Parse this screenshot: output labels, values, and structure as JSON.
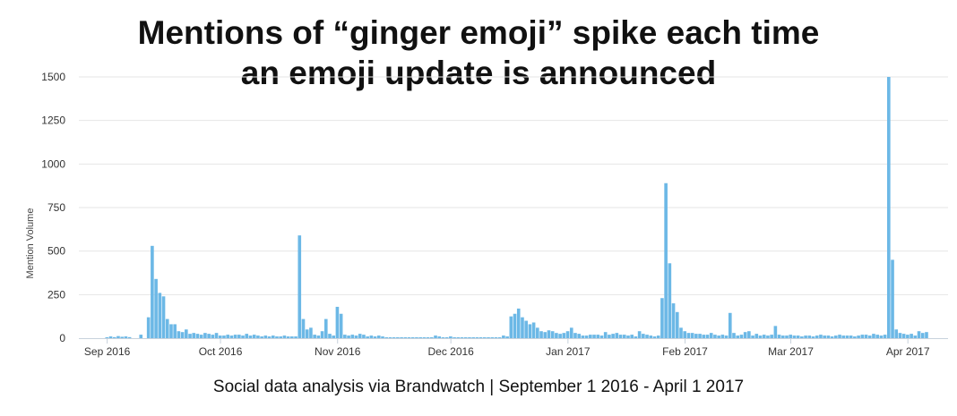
{
  "chart_data": {
    "type": "bar",
    "title_lines": [
      "Mentions of “ginger emoji” spike each time",
      "an emoji update is announced"
    ],
    "subtitle": "Social data analysis via Brandwatch | September 1 2016 - April 1 2017",
    "ylabel": "Mention Volume",
    "xlabel": "",
    "ylim": [
      0,
      1500
    ],
    "yticks": [
      "0",
      "250",
      "500",
      "750",
      "1000",
      "1250",
      "1500"
    ],
    "xticks": [
      {
        "label": "Sep 2016",
        "x": "2016-09-01"
      },
      {
        "label": "Oct 2016",
        "x": "2016-10-01"
      },
      {
        "label": "Nov 2016",
        "x": "2016-11-01"
      },
      {
        "label": "Dec 2016",
        "x": "2016-12-01"
      },
      {
        "label": "Jan 2017",
        "x": "2017-01-01"
      },
      {
        "label": "Feb 2017",
        "x": "2017-02-01"
      },
      {
        "label": "Mar 2017",
        "x": "2017-03-01"
      },
      {
        "label": "Apr 2017",
        "x": "2017-04-01"
      }
    ],
    "grid": true,
    "bar_color": "#6cb8e6",
    "x_start": "2016-08-25",
    "values": [
      0,
      0,
      0,
      0,
      0,
      0,
      0,
      5,
      10,
      6,
      12,
      8,
      10,
      6,
      0,
      0,
      20,
      0,
      120,
      530,
      340,
      260,
      240,
      110,
      80,
      80,
      40,
      35,
      50,
      25,
      30,
      25,
      20,
      30,
      25,
      20,
      30,
      15,
      15,
      20,
      15,
      20,
      20,
      15,
      25,
      15,
      20,
      15,
      10,
      15,
      10,
      15,
      10,
      10,
      15,
      10,
      10,
      10,
      590,
      110,
      50,
      60,
      20,
      15,
      40,
      110,
      25,
      15,
      180,
      140,
      20,
      15,
      20,
      15,
      25,
      20,
      10,
      15,
      10,
      15,
      10,
      5,
      5,
      5,
      5,
      5,
      5,
      5,
      5,
      5,
      5,
      5,
      5,
      5,
      15,
      10,
      5,
      5,
      10,
      5,
      5,
      5,
      5,
      5,
      5,
      5,
      5,
      5,
      5,
      5,
      5,
      5,
      15,
      10,
      125,
      140,
      170,
      120,
      100,
      80,
      90,
      60,
      40,
      35,
      45,
      40,
      30,
      25,
      30,
      40,
      60,
      30,
      25,
      15,
      15,
      20,
      20,
      20,
      15,
      35,
      20,
      25,
      30,
      20,
      20,
      15,
      20,
      10,
      40,
      25,
      20,
      15,
      10,
      15,
      230,
      890,
      430,
      200,
      150,
      60,
      40,
      30,
      30,
      25,
      25,
      20,
      20,
      30,
      20,
      15,
      20,
      15,
      145,
      30,
      15,
      20,
      35,
      40,
      15,
      25,
      15,
      20,
      15,
      20,
      70,
      20,
      15,
      15,
      20,
      15,
      15,
      10,
      15,
      15,
      10,
      15,
      20,
      15,
      15,
      10,
      15,
      20,
      15,
      15,
      15,
      10,
      15,
      20,
      20,
      15,
      25,
      20,
      15,
      20,
      1500,
      450,
      50,
      30,
      25,
      20,
      25,
      15,
      40,
      30,
      35
    ]
  }
}
